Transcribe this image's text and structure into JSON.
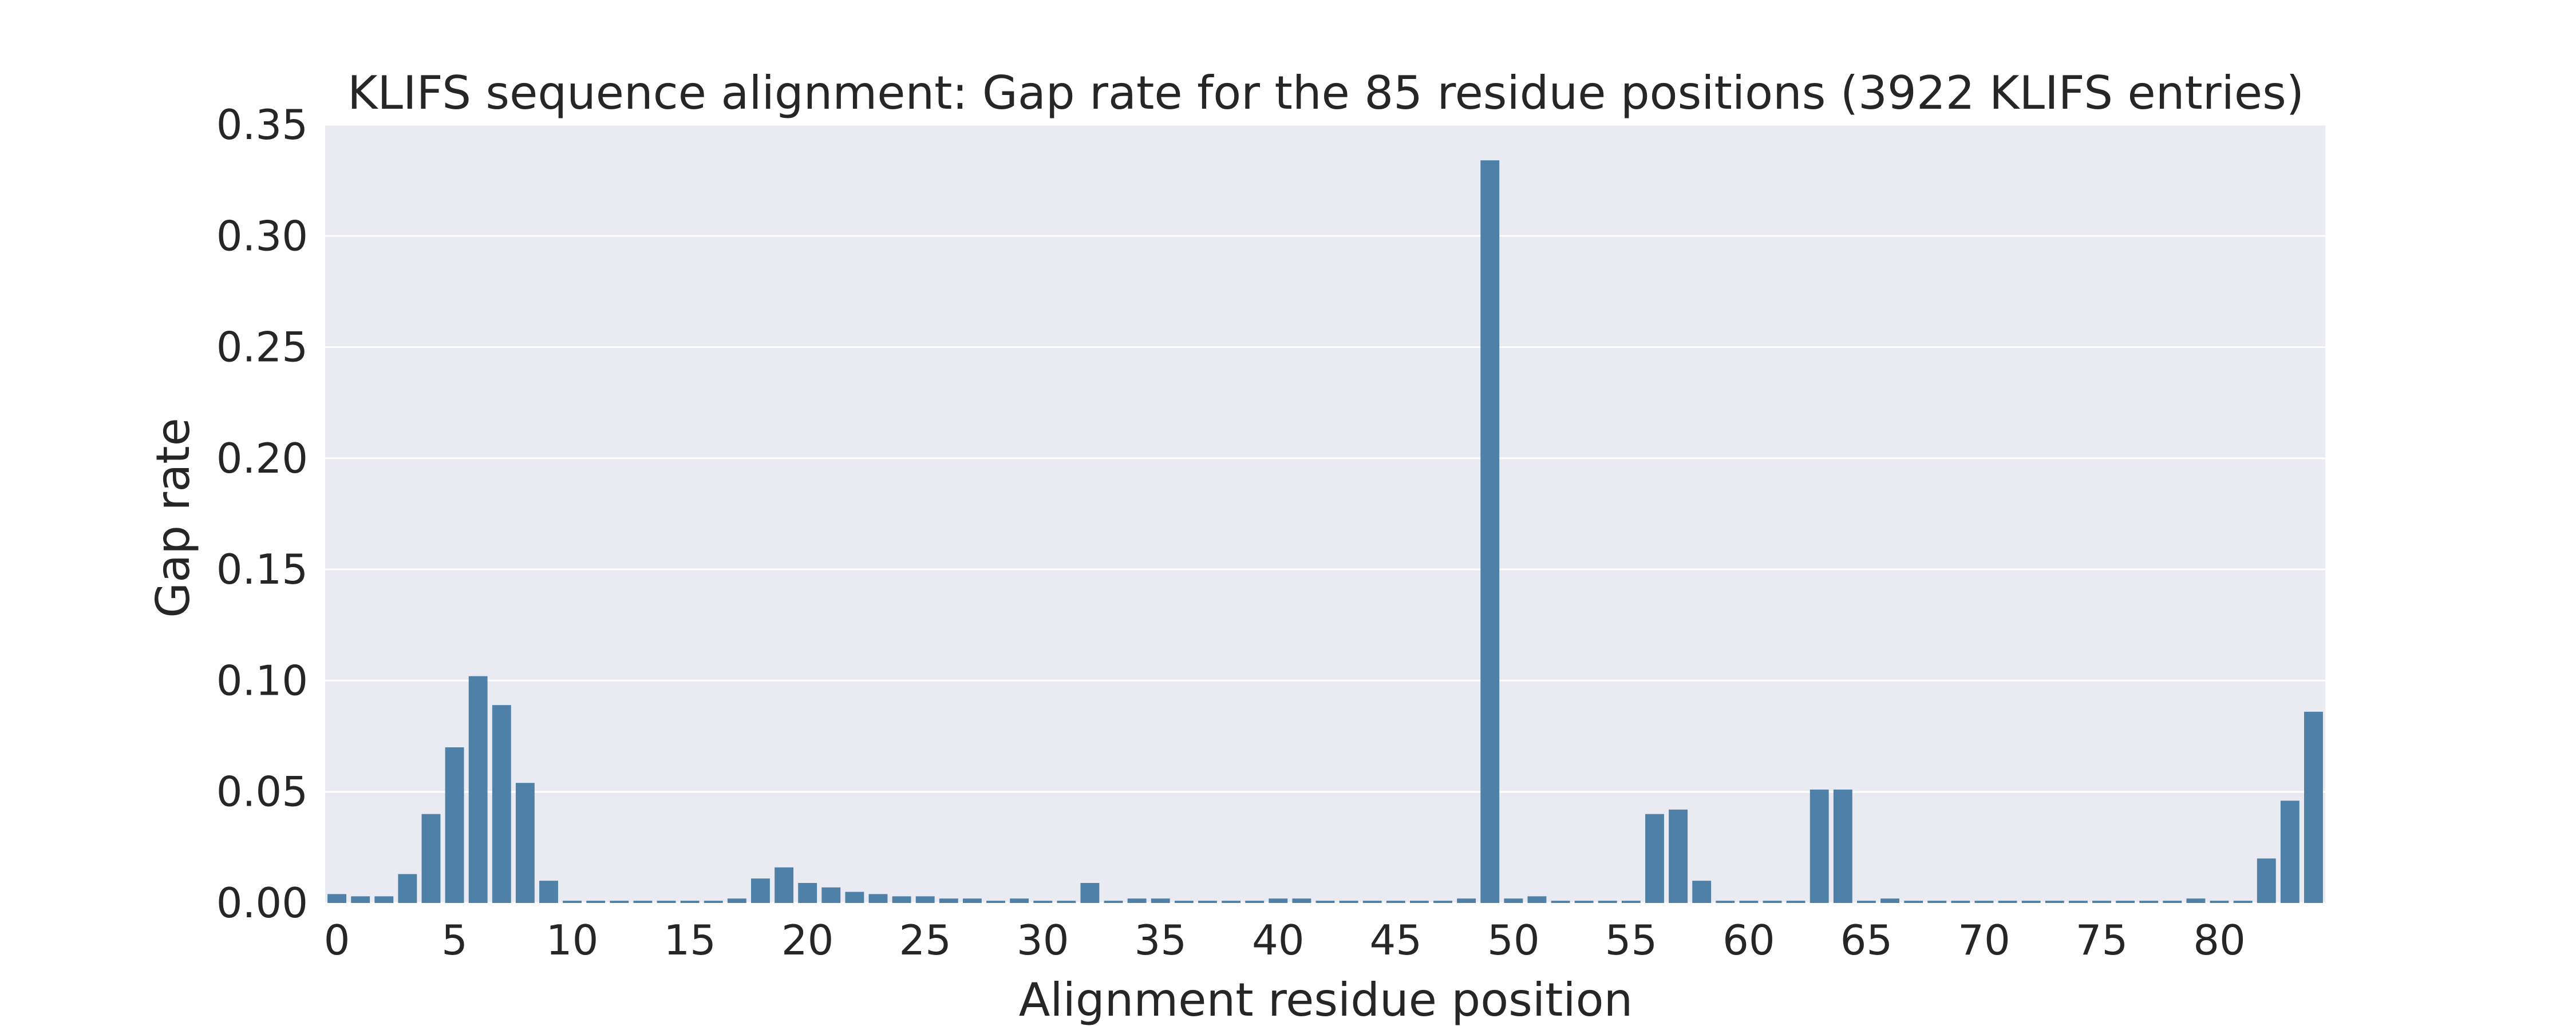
{
  "chart_data": {
    "type": "bar",
    "title": "KLIFS sequence alignment: Gap rate for the 85 residue positions (3922 KLIFS entries)",
    "xlabel": "Alignment residue position",
    "ylabel": "Gap rate",
    "ylim": [
      0,
      0.35
    ],
    "yticks": [
      0.0,
      0.05,
      0.1,
      0.15,
      0.2,
      0.25,
      0.3,
      0.35
    ],
    "ytick_labels": [
      "0.00",
      "0.05",
      "0.10",
      "0.15",
      "0.20",
      "0.25",
      "0.30",
      "0.35"
    ],
    "xticks": [
      0,
      5,
      10,
      15,
      20,
      25,
      30,
      35,
      40,
      45,
      50,
      55,
      60,
      65,
      70,
      75,
      80
    ],
    "xtick_labels": [
      "0",
      "5",
      "10",
      "15",
      "20",
      "25",
      "30",
      "35",
      "40",
      "45",
      "50",
      "55",
      "60",
      "65",
      "70",
      "75",
      "80"
    ],
    "categories": [
      0,
      1,
      2,
      3,
      4,
      5,
      6,
      7,
      8,
      9,
      10,
      11,
      12,
      13,
      14,
      15,
      16,
      17,
      18,
      19,
      20,
      21,
      22,
      23,
      24,
      25,
      26,
      27,
      28,
      29,
      30,
      31,
      32,
      33,
      34,
      35,
      36,
      37,
      38,
      39,
      40,
      41,
      42,
      43,
      44,
      45,
      46,
      47,
      48,
      49,
      50,
      51,
      52,
      53,
      54,
      55,
      56,
      57,
      58,
      59,
      60,
      61,
      62,
      63,
      64,
      65,
      66,
      67,
      68,
      69,
      70,
      71,
      72,
      73,
      74,
      75,
      76,
      77,
      78,
      79,
      80,
      81,
      82,
      83,
      84
    ],
    "values": [
      0.004,
      0.003,
      0.003,
      0.013,
      0.04,
      0.07,
      0.102,
      0.089,
      0.054,
      0.01,
      0.001,
      0.001,
      0.001,
      0.001,
      0.001,
      0.001,
      0.001,
      0.002,
      0.011,
      0.016,
      0.009,
      0.007,
      0.005,
      0.004,
      0.003,
      0.003,
      0.002,
      0.002,
      0.001,
      0.002,
      0.001,
      0.001,
      0.009,
      0.001,
      0.002,
      0.002,
      0.001,
      0.001,
      0.001,
      0.001,
      0.002,
      0.002,
      0.001,
      0.001,
      0.001,
      0.001,
      0.001,
      0.001,
      0.002,
      0.334,
      0.002,
      0.003,
      0.001,
      0.001,
      0.001,
      0.001,
      0.04,
      0.042,
      0.01,
      0.001,
      0.001,
      0.001,
      0.001,
      0.051,
      0.051,
      0.001,
      0.002,
      0.001,
      0.001,
      0.001,
      0.001,
      0.001,
      0.001,
      0.001,
      0.001,
      0.001,
      0.001,
      0.001,
      0.001,
      0.002,
      0.001,
      0.001,
      0.02,
      0.046,
      0.086
    ],
    "bar_color": "#4f81a8",
    "plot_background": "#eaeaf2",
    "grid_color": "#ffffff",
    "grid": true,
    "legend": false
  }
}
